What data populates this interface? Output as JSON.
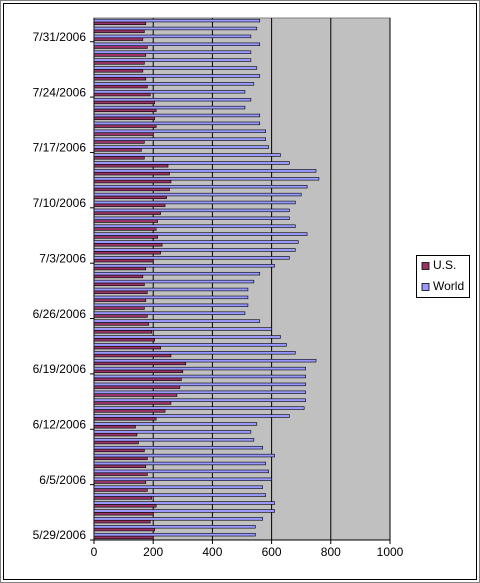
{
  "chart_data": {
    "type": "hbar",
    "categories": [
      "5/29/2006",
      null,
      null,
      null,
      null,
      null,
      null,
      "6/5/2006",
      null,
      null,
      null,
      null,
      null,
      null,
      "6/12/2006",
      null,
      null,
      null,
      null,
      null,
      null,
      "6/19/2006",
      null,
      null,
      null,
      null,
      null,
      null,
      "6/26/2006",
      null,
      null,
      null,
      null,
      null,
      null,
      "7/3/2006",
      null,
      null,
      null,
      null,
      null,
      null,
      "7/10/2006",
      null,
      null,
      null,
      null,
      null,
      null,
      "7/17/2006",
      null,
      null,
      null,
      null,
      null,
      null,
      "7/24/2006",
      null,
      null,
      null,
      null,
      null,
      null,
      "7/31/2006",
      null,
      null
    ],
    "series": [
      {
        "name": "U.S.",
        "color": "#993366",
        "values": [
          200,
          205,
          190,
          200,
          210,
          195,
          180,
          175,
          180,
          175,
          180,
          170,
          150,
          145,
          140,
          210,
          240,
          260,
          280,
          290,
          295,
          300,
          310,
          260,
          225,
          205,
          195,
          185,
          180,
          170,
          175,
          180,
          170,
          165,
          175,
          200,
          225,
          230,
          215,
          210,
          215,
          225,
          240,
          245,
          255,
          260,
          255,
          250,
          170,
          160,
          170,
          200,
          210,
          205,
          210,
          205,
          190,
          180,
          175,
          165,
          170,
          175,
          180,
          165,
          170,
          175
        ]
      },
      {
        "name": "World",
        "color": "#9999ff",
        "values": [
          545,
          545,
          570,
          610,
          610,
          580,
          570,
          600,
          590,
          580,
          610,
          570,
          540,
          530,
          550,
          660,
          710,
          715,
          715,
          715,
          715,
          715,
          750,
          680,
          650,
          630,
          600,
          560,
          510,
          520,
          520,
          520,
          540,
          560,
          610,
          660,
          680,
          690,
          720,
          680,
          660,
          660,
          680,
          700,
          720,
          760,
          750,
          660,
          630,
          590,
          580,
          580,
          560,
          560,
          510,
          530,
          510,
          540,
          560,
          550,
          530,
          530,
          560,
          530,
          550,
          560
        ]
      }
    ],
    "xlim": [
      0,
      1000
    ],
    "xticks": [
      0,
      200,
      400,
      600,
      800,
      1000
    ],
    "grid": true
  }
}
